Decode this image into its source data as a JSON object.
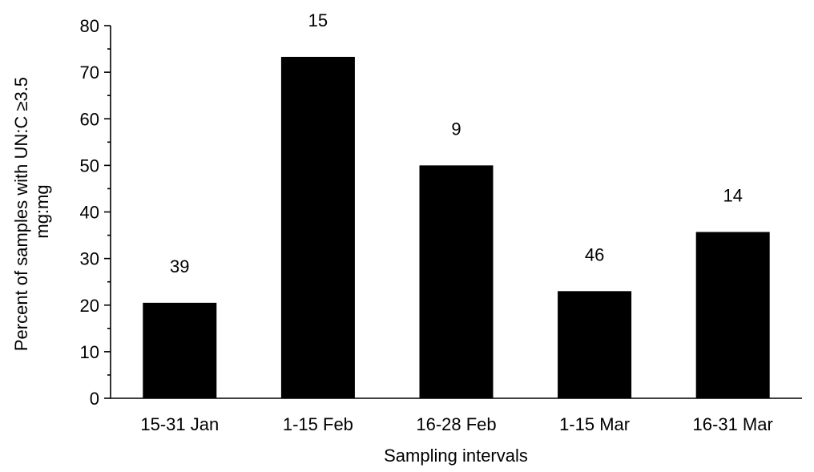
{
  "chart_data": {
    "type": "bar",
    "categories": [
      "15-31 Jan",
      "1-15 Feb",
      "16-28 Feb",
      "1-15 Mar",
      "16-31 Mar"
    ],
    "values": [
      20.5,
      73.3,
      50.0,
      23.0,
      35.7
    ],
    "data_labels": [
      "39",
      "15",
      "9",
      "46",
      "14"
    ],
    "xlabel": "Sampling intervals",
    "ylabel_lines": [
      "Percent of samples with UN:C ≥3.5",
      "mg:mg"
    ],
    "ylim": [
      0,
      80
    ],
    "yticks": [
      0,
      10,
      20,
      30,
      40,
      50,
      60,
      70,
      80
    ],
    "grid": false,
    "legend": "none",
    "bar_color": "#000000"
  }
}
